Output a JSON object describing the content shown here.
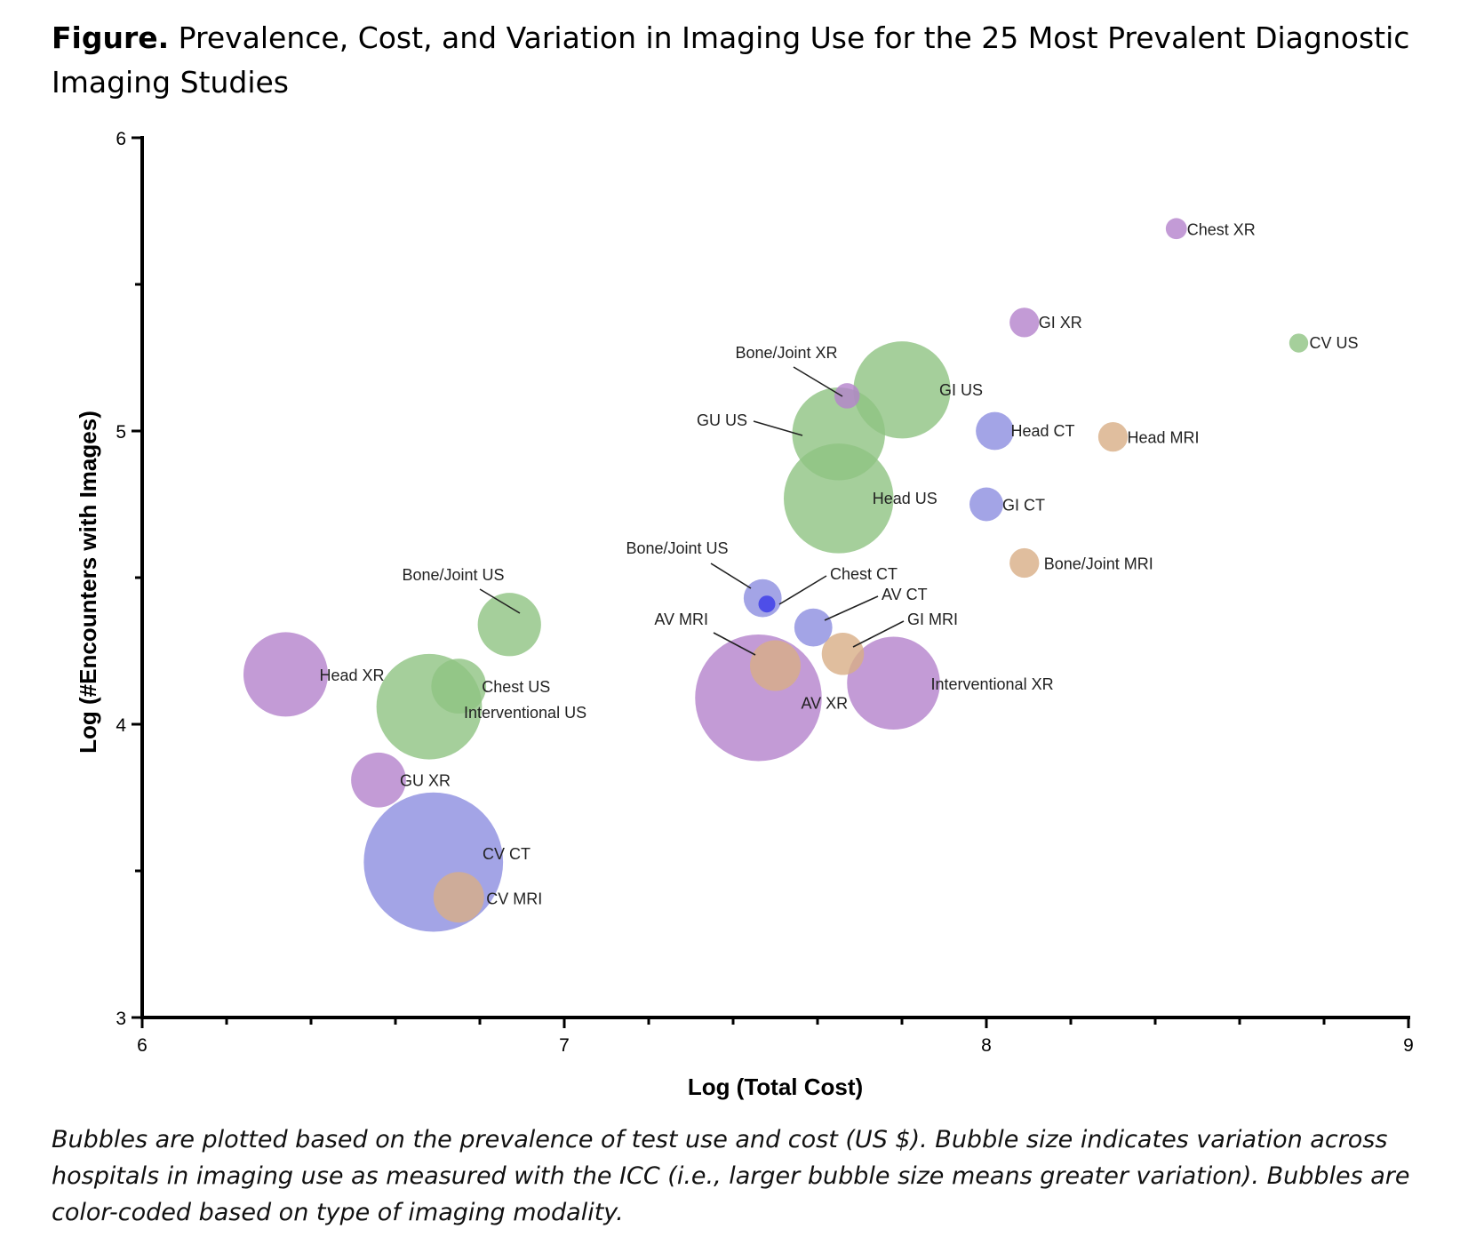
{
  "title_prefix": "Figure.",
  "title_text": "Prevalence, Cost, and Variation in Imaging Use for the 25 Most Prevalent Diagnostic Imaging Studies",
  "caption": "Bubbles are plotted based on the prevalence of test use and cost (US $). Bubble size indicates variation across hospitals in imaging use as measured with the ICC (i.e., larger bubble size means greater variation). Bubbles are color-coded based on type of imaging modality.",
  "chart_data": {
    "type": "scatter",
    "xlabel": "Log (Total Cost)",
    "ylabel": "Log (#Encounters with Images)",
    "xlim": [
      6,
      9
    ],
    "ylim": [
      3,
      6
    ],
    "xticks": [
      "6",
      "7",
      "8",
      "9"
    ],
    "yticks": [
      "3",
      "4",
      "5",
      "6"
    ],
    "grid": false,
    "legend": "none",
    "colors": {
      "XR": "#b482cc",
      "US": "#8fc382",
      "CT": "#8c8de0",
      "MRI": "#d8ae86"
    },
    "points": [
      {
        "label": "Chest XR",
        "x": 8.45,
        "y": 5.69,
        "size": 0.05,
        "modality": "XR"
      },
      {
        "label": "GI XR",
        "x": 8.09,
        "y": 5.37,
        "size": 0.07,
        "modality": "XR"
      },
      {
        "label": "CV US",
        "x": 8.74,
        "y": 5.3,
        "size": 0.045,
        "modality": "US"
      },
      {
        "label": "Bone/Joint XR",
        "x": 7.67,
        "y": 5.12,
        "size": 0.06,
        "modality": "XR"
      },
      {
        "label": "GI US",
        "x": 7.8,
        "y": 5.14,
        "size": 0.23,
        "modality": "US"
      },
      {
        "label": "Head CT",
        "x": 8.02,
        "y": 5.0,
        "size": 0.09,
        "modality": "CT"
      },
      {
        "label": "Head MRI",
        "x": 8.3,
        "y": 4.98,
        "size": 0.07,
        "modality": "MRI"
      },
      {
        "label": "GU US",
        "x": 7.65,
        "y": 4.99,
        "size": 0.22,
        "modality": "US"
      },
      {
        "label": "Head US",
        "x": 7.65,
        "y": 4.77,
        "size": 0.26,
        "modality": "US"
      },
      {
        "label": "GI CT",
        "x": 8.0,
        "y": 4.75,
        "size": 0.08,
        "modality": "CT"
      },
      {
        "label": "Bone/Joint MRI",
        "x": 8.09,
        "y": 4.55,
        "size": 0.07,
        "modality": "MRI"
      },
      {
        "label": "Bone/Joint US",
        "x": 7.47,
        "y": 4.43,
        "size": 0.09,
        "modality": "CT"
      },
      {
        "label": "Chest CT",
        "x": 7.48,
        "y": 4.41,
        "size": 0.04,
        "modality": "CT-dark"
      },
      {
        "label": "AV CT",
        "x": 7.59,
        "y": 4.33,
        "size": 0.09,
        "modality": "CT"
      },
      {
        "label": "GI MRI",
        "x": 7.66,
        "y": 4.24,
        "size": 0.1,
        "modality": "MRI"
      },
      {
        "label": "Bone/Joint US",
        "x": 6.87,
        "y": 4.34,
        "size": 0.15,
        "modality": "US"
      },
      {
        "label": "AV MRI",
        "x": 7.5,
        "y": 4.2,
        "size": 0.12,
        "modality": "MRI"
      },
      {
        "label": "AV XR",
        "x": 7.46,
        "y": 4.09,
        "size": 0.3,
        "modality": "XR"
      },
      {
        "label": "Interventional XR",
        "x": 7.78,
        "y": 4.14,
        "size": 0.22,
        "modality": "XR"
      },
      {
        "label": "Head XR",
        "x": 6.34,
        "y": 4.17,
        "size": 0.2,
        "modality": "XR"
      },
      {
        "label": "Chest US",
        "x": 6.75,
        "y": 4.13,
        "size": 0.13,
        "modality": "US"
      },
      {
        "label": "Interventional US",
        "x": 6.68,
        "y": 4.06,
        "size": 0.25,
        "modality": "US"
      },
      {
        "label": "GU XR",
        "x": 6.56,
        "y": 3.81,
        "size": 0.13,
        "modality": "XR"
      },
      {
        "label": "CV CT",
        "x": 6.69,
        "y": 3.53,
        "size": 0.33,
        "modality": "CT"
      },
      {
        "label": "CV MRI",
        "x": 6.75,
        "y": 3.41,
        "size": 0.12,
        "modality": "MRI"
      }
    ]
  }
}
